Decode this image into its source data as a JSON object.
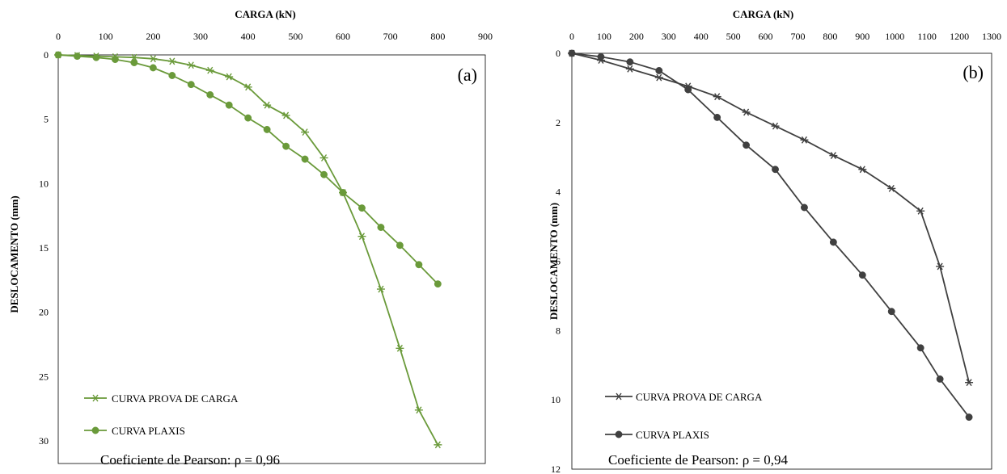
{
  "chart_data": [
    {
      "type": "line",
      "panel_label": "(a)",
      "xlabel": "CARGA (kN)",
      "ylabel": "DESLOCAMENTO (mm)",
      "xlim": [
        0,
        900
      ],
      "ylim": [
        0,
        31
      ],
      "y_inverted": true,
      "x_axis_position": "top",
      "x_ticks": [
        0,
        100,
        200,
        300,
        400,
        500,
        600,
        700,
        800,
        900
      ],
      "y_ticks": [
        0,
        5,
        10,
        15,
        20,
        25,
        30
      ],
      "grid": false,
      "legend_position": "bottom-left",
      "color": "#6a9a3a",
      "annotation": "Coeficiente de Pearson: ρ = 0,96",
      "series": [
        {
          "name": "CURVA PROVA DE CARGA",
          "marker": "asterisk",
          "x": [
            0,
            40,
            80,
            120,
            160,
            200,
            240,
            280,
            320,
            360,
            400,
            440,
            480,
            520,
            560,
            600,
            640,
            680,
            720,
            760,
            800
          ],
          "y": [
            0,
            0.05,
            0.1,
            0.15,
            0.2,
            0.3,
            0.5,
            0.8,
            1.2,
            1.7,
            2.5,
            3.9,
            4.7,
            6.0,
            8.0,
            10.7,
            14.1,
            18.2,
            22.8,
            27.6,
            30.3
          ]
        },
        {
          "name": "CURVA PLAXIS",
          "marker": "circle",
          "x": [
            0,
            40,
            80,
            120,
            160,
            200,
            240,
            280,
            320,
            360,
            400,
            440,
            480,
            520,
            560,
            600,
            640,
            680,
            720,
            760,
            800
          ],
          "y": [
            0,
            0.1,
            0.2,
            0.35,
            0.6,
            1.0,
            1.6,
            2.3,
            3.1,
            3.9,
            4.9,
            5.8,
            7.1,
            8.1,
            9.3,
            10.7,
            11.9,
            13.4,
            14.8,
            16.3,
            17.8
          ]
        }
      ]
    },
    {
      "type": "line",
      "panel_label": "(b)",
      "xlabel": "CARGA (kN)",
      "ylabel": "DESLOCAMENTO (mm)",
      "xlim": [
        0,
        1300
      ],
      "ylim": [
        0,
        12
      ],
      "y_inverted": true,
      "x_axis_position": "top",
      "x_ticks": [
        0,
        100,
        200,
        300,
        400,
        500,
        600,
        700,
        800,
        900,
        1000,
        1100,
        1200,
        1300
      ],
      "y_ticks": [
        0,
        2,
        4,
        6,
        8,
        10,
        12
      ],
      "grid": false,
      "legend_position": "bottom-left",
      "color": "#404040",
      "annotation": "Coeficiente de Pearson: ρ = 0,94",
      "series": [
        {
          "name": "CURVA PROVA DE CARGA",
          "marker": "asterisk",
          "x": [
            0,
            90,
            180,
            270,
            360,
            450,
            540,
            630,
            720,
            810,
            900,
            990,
            1080,
            1140,
            1230
          ],
          "y": [
            0,
            0.2,
            0.45,
            0.7,
            0.95,
            1.25,
            1.7,
            2.1,
            2.5,
            2.95,
            3.35,
            3.9,
            4.55,
            6.15,
            9.5
          ]
        },
        {
          "name": "CURVA PLAXIS",
          "marker": "circle",
          "x": [
            0,
            90,
            180,
            270,
            360,
            450,
            540,
            630,
            720,
            810,
            900,
            990,
            1080,
            1140,
            1230
          ],
          "y": [
            0,
            0.1,
            0.25,
            0.5,
            1.05,
            1.85,
            2.65,
            3.35,
            4.45,
            5.45,
            6.4,
            7.45,
            8.5,
            9.4,
            10.5
          ]
        }
      ]
    }
  ]
}
